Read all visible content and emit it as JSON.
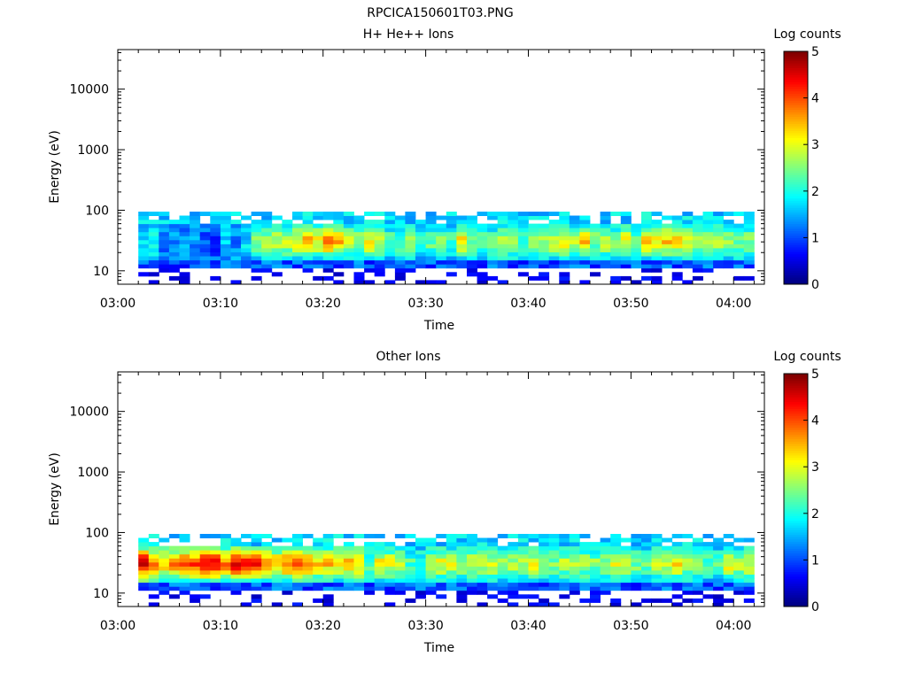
{
  "figure_title": "RPCICA150601T03.PNG",
  "chart_data": [
    {
      "type": "heatmap",
      "title": "H+ He++ Ions",
      "xlabel": "Time",
      "ylabel": "Energy (eV)",
      "x_ticks": [
        "03:00",
        "03:10",
        "03:20",
        "03:30",
        "03:40",
        "03:50",
        "04:00"
      ],
      "x_range": [
        "03:00",
        "04:03"
      ],
      "y_scale": "log",
      "y_ticks": [
        "10",
        "100",
        "1000",
        "10000"
      ],
      "y_range": [
        6,
        45000
      ],
      "colorbar": {
        "label": "Log counts",
        "ticks": [
          "0",
          "1",
          "2",
          "3",
          "4",
          "5"
        ],
        "range": [
          0,
          5
        ],
        "colormap": "rainbow"
      },
      "data_extent": {
        "time_start": "03:02",
        "time_end": "04:02",
        "energy_min": 6,
        "energy_max": 95
      },
      "profile": [
        [
          0.0,
          1.6
        ],
        [
          0.08,
          1.3
        ],
        [
          0.12,
          0.9
        ],
        [
          0.17,
          2.0
        ],
        [
          0.22,
          3.0
        ],
        [
          0.3,
          3.6
        ],
        [
          0.38,
          2.6
        ],
        [
          0.47,
          2.3
        ],
        [
          0.55,
          2.9
        ],
        [
          0.62,
          2.5
        ],
        [
          0.7,
          3.1
        ],
        [
          0.78,
          2.8
        ],
        [
          0.85,
          3.0
        ],
        [
          0.92,
          2.6
        ],
        [
          1.0,
          2.7
        ]
      ]
    },
    {
      "type": "heatmap",
      "title": "Other Ions",
      "xlabel": "Time",
      "ylabel": "Energy (eV)",
      "x_ticks": [
        "03:00",
        "03:10",
        "03:20",
        "03:30",
        "03:40",
        "03:50",
        "04:00"
      ],
      "x_range": [
        "03:00",
        "04:03"
      ],
      "y_scale": "log",
      "y_ticks": [
        "10",
        "100",
        "1000",
        "10000"
      ],
      "y_range": [
        6,
        45000
      ],
      "colorbar": {
        "label": "Log counts",
        "ticks": [
          "0",
          "1",
          "2",
          "3",
          "4",
          "5"
        ],
        "range": [
          0,
          5
        ],
        "colormap": "rainbow"
      },
      "data_extent": {
        "time_start": "03:02",
        "time_end": "04:02",
        "energy_min": 6,
        "energy_max": 95
      },
      "profile": [
        [
          0.0,
          4.2
        ],
        [
          0.05,
          3.6
        ],
        [
          0.09,
          4.3
        ],
        [
          0.15,
          4.1
        ],
        [
          0.22,
          3.6
        ],
        [
          0.3,
          3.8
        ],
        [
          0.38,
          2.7
        ],
        [
          0.47,
          2.5
        ],
        [
          0.55,
          2.9
        ],
        [
          0.62,
          2.6
        ],
        [
          0.7,
          3.1
        ],
        [
          0.78,
          2.7
        ],
        [
          0.85,
          3.0
        ],
        [
          0.92,
          2.6
        ],
        [
          1.0,
          2.7
        ]
      ]
    }
  ]
}
